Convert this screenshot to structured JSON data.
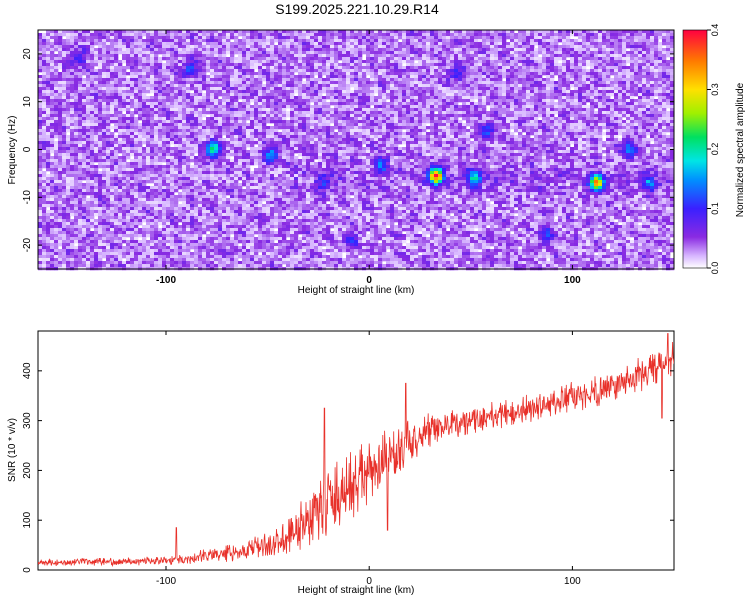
{
  "title": "S199.2025.221.10.29.R14",
  "colors": {
    "line": "#e8312a",
    "axis": "#000000",
    "heatmap_bg": "#ffffff"
  },
  "chart_data": [
    {
      "type": "heatmap",
      "xlabel": "Height of straight line (km)",
      "ylabel": "Frequency (Hz)",
      "xlim": [
        -163,
        150
      ],
      "ylim": [
        -25,
        25
      ],
      "x_ticks": [
        {
          "value": -100,
          "label": "-100"
        },
        {
          "value": 0,
          "label": "0"
        },
        {
          "value": 100,
          "label": "100"
        }
      ],
      "y_ticks": [
        {
          "value": 20,
          "label": "20"
        },
        {
          "value": 10,
          "label": "10"
        },
        {
          "value": 0,
          "label": "0"
        },
        {
          "value": -10,
          "label": "-10"
        },
        {
          "value": -20,
          "label": "-20"
        }
      ],
      "colorbar": {
        "label": "Normalized spectral amplitude",
        "range": [
          0,
          0.4
        ],
        "ticks": [
          {
            "value": 0.0,
            "label": "0.0"
          },
          {
            "value": 0.1,
            "label": "0.1"
          },
          {
            "value": 0.2,
            "label": "0.2"
          },
          {
            "value": 0.3,
            "label": "0.3"
          },
          {
            "value": 0.4,
            "label": "0.4"
          }
        ]
      },
      "background_level": 0.03,
      "hotspots": [
        {
          "x": -77,
          "y": 0,
          "amplitude": 0.2
        },
        {
          "x": -48,
          "y": -1,
          "amplitude": 0.13
        },
        {
          "x": 33,
          "y": -5.5,
          "amplitude": 0.36
        },
        {
          "x": 52,
          "y": -6,
          "amplitude": 0.17
        },
        {
          "x": 112,
          "y": -7,
          "amplitude": 0.3
        },
        {
          "x": 128,
          "y": 0,
          "amplitude": 0.12
        },
        {
          "x": 138,
          "y": -7,
          "amplitude": 0.11
        },
        {
          "x": -143,
          "y": 19,
          "amplitude": 0.08
        },
        {
          "x": -88,
          "y": 17,
          "amplitude": 0.09
        },
        {
          "x": 58,
          "y": 4,
          "amplitude": 0.09
        },
        {
          "x": 43,
          "y": 16,
          "amplitude": 0.08
        },
        {
          "x": 87,
          "y": -18,
          "amplitude": 0.08
        },
        {
          "x": -9,
          "y": -19,
          "amplitude": 0.07
        },
        {
          "x": 6,
          "y": -3,
          "amplitude": 0.1
        },
        {
          "x": -22,
          "y": -7,
          "amplitude": 0.08
        }
      ]
    },
    {
      "type": "line",
      "xlabel": "Height of straight line (km)",
      "ylabel": "SNR (10 * v/v)",
      "xlim": [
        -163,
        150
      ],
      "ylim": [
        0,
        480
      ],
      "x_ticks": [
        {
          "value": -100,
          "label": "-100"
        },
        {
          "value": 0,
          "label": "0"
        },
        {
          "value": 100,
          "label": "100"
        }
      ],
      "y_ticks": [
        {
          "value": 0,
          "label": "0"
        },
        {
          "value": 100,
          "label": "100"
        },
        {
          "value": 200,
          "label": "200"
        },
        {
          "value": 300,
          "label": "300"
        },
        {
          "value": 400,
          "label": "400"
        }
      ],
      "series": [
        {
          "name": "SNR",
          "trend": [
            {
              "x": -163,
              "y": 15,
              "noise": 5
            },
            {
              "x": -110,
              "y": 18,
              "noise": 6
            },
            {
              "x": -90,
              "y": 22,
              "noise": 8
            },
            {
              "x": -75,
              "y": 32,
              "noise": 12
            },
            {
              "x": -60,
              "y": 40,
              "noise": 14
            },
            {
              "x": -45,
              "y": 55,
              "noise": 25
            },
            {
              "x": -35,
              "y": 85,
              "noise": 40
            },
            {
              "x": -25,
              "y": 120,
              "noise": 50
            },
            {
              "x": -15,
              "y": 150,
              "noise": 55
            },
            {
              "x": -5,
              "y": 180,
              "noise": 55
            },
            {
              "x": 5,
              "y": 205,
              "noise": 50
            },
            {
              "x": 15,
              "y": 240,
              "noise": 40
            },
            {
              "x": 25,
              "y": 268,
              "noise": 30
            },
            {
              "x": 35,
              "y": 285,
              "noise": 25
            },
            {
              "x": 50,
              "y": 300,
              "noise": 22
            },
            {
              "x": 75,
              "y": 320,
              "noise": 22
            },
            {
              "x": 100,
              "y": 345,
              "noise": 24
            },
            {
              "x": 120,
              "y": 370,
              "noise": 25
            },
            {
              "x": 135,
              "y": 395,
              "noise": 28
            },
            {
              "x": 150,
              "y": 420,
              "noise": 30
            }
          ],
          "events": [
            {
              "x": 9,
              "y": 80
            },
            {
              "x": 18,
              "y": 375
            },
            {
              "x": -22,
              "y": 325
            },
            {
              "x": -95,
              "y": 85
            },
            {
              "x": 147,
              "y": 475
            },
            {
              "x": 144,
              "y": 305
            }
          ]
        }
      ]
    }
  ]
}
